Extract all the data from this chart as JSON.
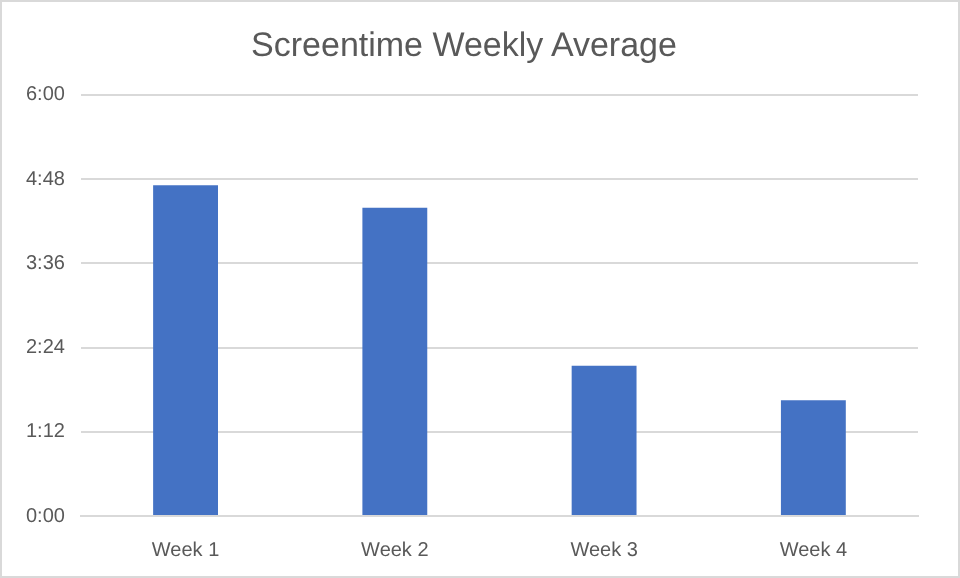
{
  "chart_data": {
    "type": "bar",
    "title": "Screentime Weekly Average",
    "categories": [
      "Week 1",
      "Week 2",
      "Week 3",
      "Week 4"
    ],
    "values": [
      4.71,
      4.39,
      2.14,
      1.65
    ],
    "color": "#4472c4",
    "ylim": [
      0,
      6
    ],
    "yticks": [
      {
        "value": 0,
        "label": "0:00"
      },
      {
        "value": 1.2,
        "label": "1:12"
      },
      {
        "value": 2.4,
        "label": "2:24"
      },
      {
        "value": 3.6,
        "label": "3:36"
      },
      {
        "value": 4.8,
        "label": "4:48"
      },
      {
        "value": 6,
        "label": "6:00"
      }
    ],
    "grid": "y",
    "legend": false
  }
}
